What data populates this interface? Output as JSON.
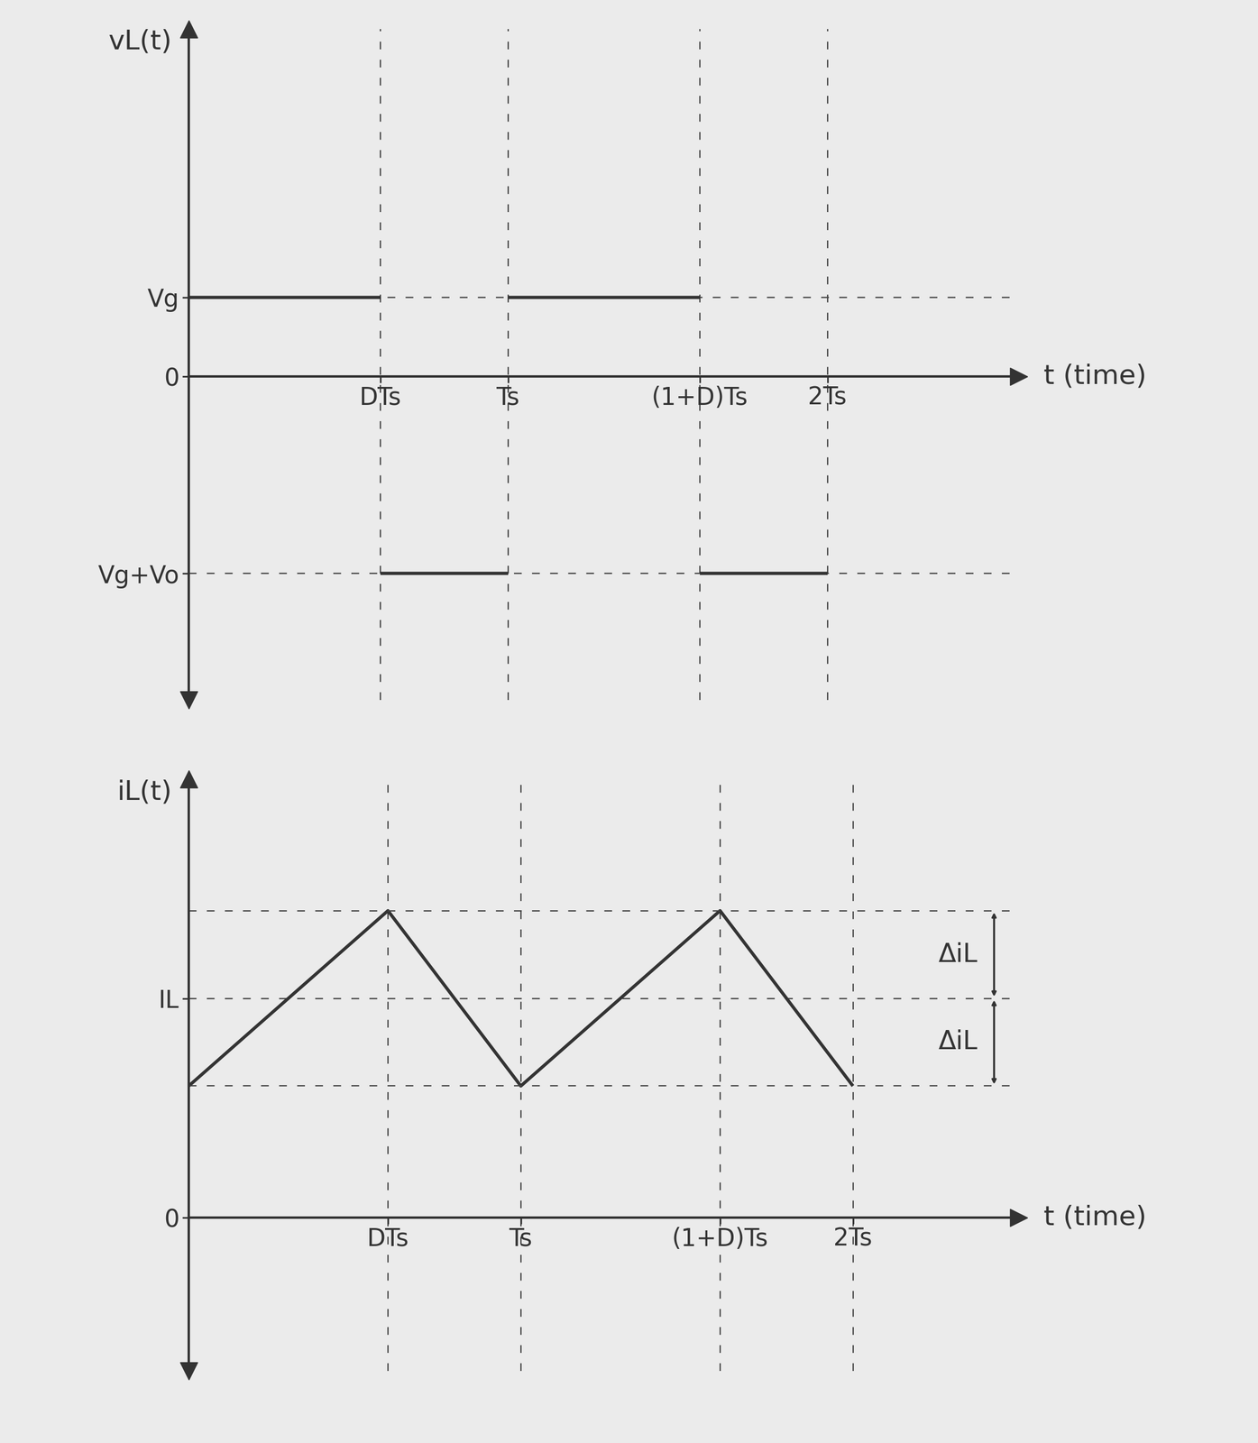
{
  "chart_data": [
    {
      "type": "line",
      "y_label": "vL(t)",
      "x_label": "t (time)",
      "x": [
        0,
        0.6,
        0.6,
        0.6,
        1,
        1,
        1,
        1.6,
        1.6,
        1.6,
        2
      ],
      "values": [
        1,
        1,
        null,
        -2.5,
        -2.5,
        null,
        1,
        1,
        null,
        -2.5,
        -2.5
      ],
      "color": "#333333",
      "xlim": [
        0,
        2.6
      ],
      "ylim": [
        -4.1,
        4.4
      ],
      "xticks": [
        {
          "value": 0.6,
          "label": "DTs"
        },
        {
          "value": 1,
          "label": "Ts"
        },
        {
          "value": 1.6,
          "label": "(1+D)Ts"
        },
        {
          "value": 2,
          "label": "2Ts"
        }
      ],
      "yticks": [
        {
          "value": -2.5,
          "label": "Vg+Vo"
        },
        0,
        {
          "value": 1,
          "label": "Vg"
        }
      ],
      "grid": true
    },
    {
      "type": "line",
      "y_label": "iL(t)",
      "x_label": "t (time)",
      "x": [
        0,
        0.6,
        1,
        1.6,
        2
      ],
      "values": [
        0.6,
        1.4,
        0.6,
        1.4,
        0.6
      ],
      "color": "#333333",
      "xlim": [
        0,
        2.5
      ],
      "ylim": [
        -0.7,
        2.0
      ],
      "xticks": [
        {
          "value": 0.6,
          "label": "DTs"
        },
        {
          "value": 1,
          "label": "Ts"
        },
        {
          "value": 1.6,
          "label": "(1+D)Ts"
        },
        {
          "value": 2,
          "label": "2Ts"
        }
      ],
      "yticks": [
        0,
        {
          "value": 1,
          "label": "IL"
        }
      ],
      "grid": true,
      "annotations": [
        {
          "text": "ΔiL",
          "from": 1,
          "to": 1.4
        },
        {
          "text": "ΔiL",
          "from": 0.6,
          "to": 1
        }
      ]
    }
  ]
}
